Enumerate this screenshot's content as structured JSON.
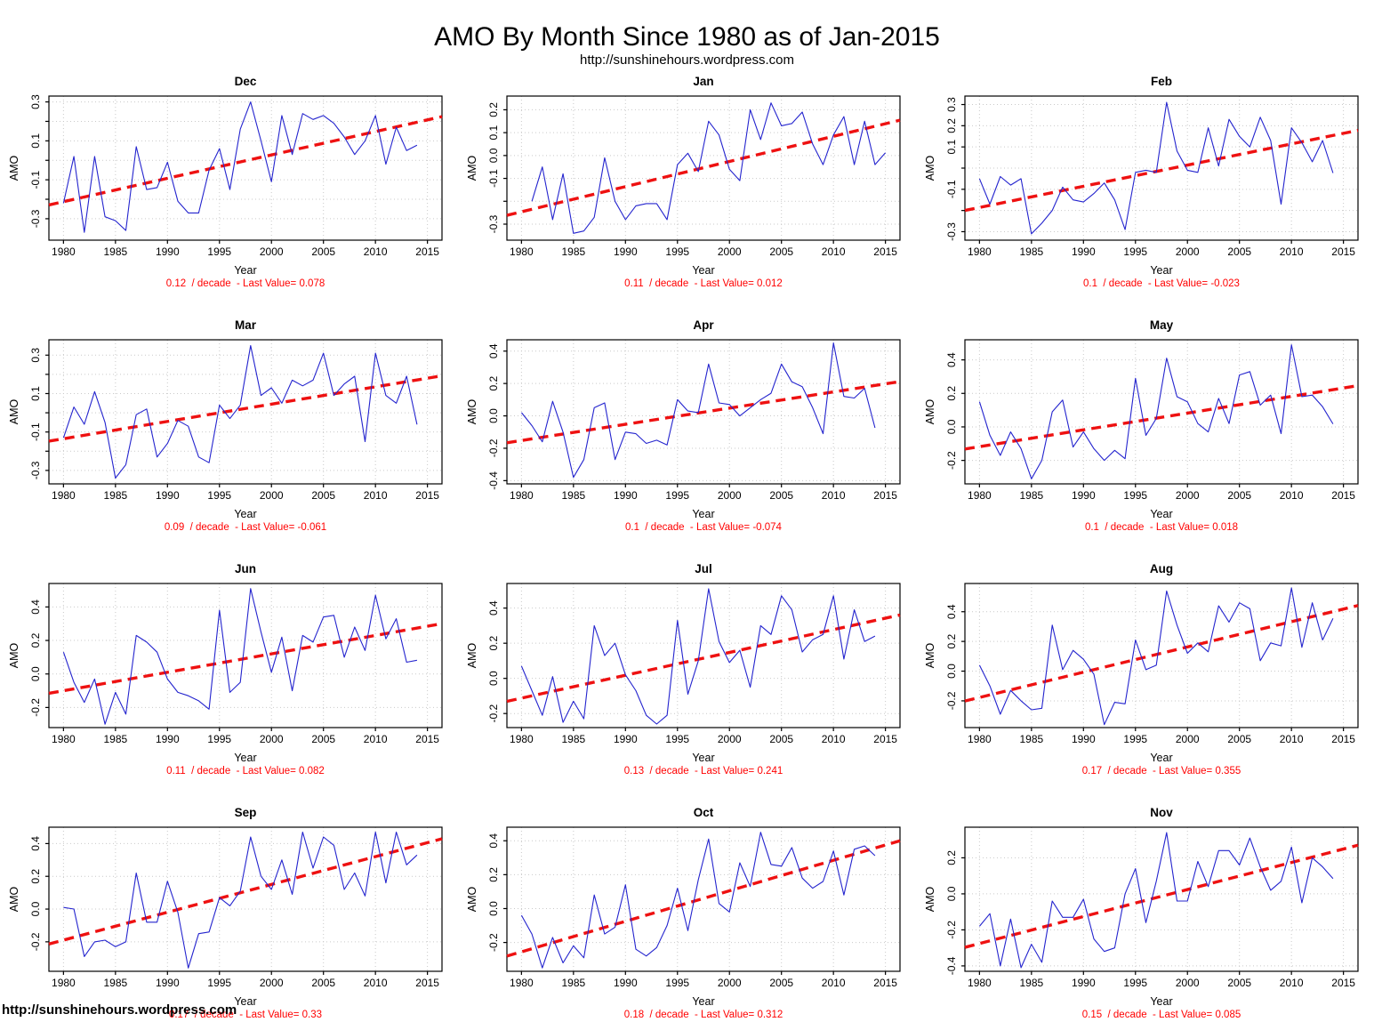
{
  "header": {
    "title": "AMO By Month Since 1980 as of Jan-2015",
    "subtitle": "http://sunshinehours.wordpress.com"
  },
  "footer": {
    "url": "http://sunshinehours.wordpress.com"
  },
  "colors": {
    "series": "#2424CE",
    "trend": "#EE1111",
    "caption": "#FF0000",
    "grid": "#C9C9C9",
    "axis": "#000000"
  },
  "axis": {
    "xlabel": "Year",
    "ylabel": "AMO",
    "xticks": [
      1980,
      1985,
      1990,
      1995,
      2000,
      2005,
      2010,
      2015
    ],
    "xlim": [
      1978.6,
      2016.4
    ]
  },
  "chart_data": [
    {
      "type": "line",
      "title": "Dec",
      "xlabel": "Year",
      "ylabel": "AMO",
      "caption": "0.12  / decade  - Last Value= 0.078",
      "trend_per_decade": 0.12,
      "last_value": 0.078,
      "x_start": 1980,
      "ylim": [
        -0.41,
        0.33
      ],
      "ytick_values": [
        0.3,
        0.2,
        0.1,
        0.0,
        -0.1,
        -0.2,
        -0.3
      ],
      "ytick_labels": [
        "0.3",
        "",
        "0.1",
        "",
        "-0.1",
        "",
        "-0.3"
      ],
      "values": [
        -0.22,
        0.02,
        -0.37,
        0.02,
        -0.29,
        -0.31,
        -0.36,
        0.07,
        -0.15,
        -0.14,
        -0.01,
        -0.21,
        -0.27,
        -0.27,
        -0.05,
        0.06,
        -0.15,
        0.16,
        0.3,
        0.1,
        -0.11,
        0.23,
        0.03,
        0.24,
        0.21,
        0.23,
        0.19,
        0.12,
        0.03,
        0.1,
        0.23,
        -0.02,
        0.17,
        0.05,
        0.078
      ]
    },
    {
      "type": "line",
      "title": "Jan",
      "xlabel": "Year",
      "ylabel": "AMO",
      "caption": "0.11  / decade  - Last Value= 0.012",
      "trend_per_decade": 0.11,
      "last_value": 0.012,
      "x_start": 1981,
      "ylim": [
        -0.37,
        0.26
      ],
      "ytick_values": [
        0.2,
        0.1,
        0.0,
        -0.1,
        -0.2,
        -0.3
      ],
      "ytick_labels": [
        "0.2",
        "0.1",
        "0.0",
        "-0.1",
        "",
        "-0.3"
      ],
      "values": [
        -0.2,
        -0.05,
        -0.28,
        -0.08,
        -0.34,
        -0.33,
        -0.27,
        -0.01,
        -0.2,
        -0.28,
        -0.22,
        -0.21,
        -0.21,
        -0.28,
        -0.04,
        0.01,
        -0.07,
        0.15,
        0.09,
        -0.06,
        -0.11,
        0.2,
        0.07,
        0.23,
        0.13,
        0.14,
        0.19,
        0.05,
        -0.04,
        0.09,
        0.17,
        -0.04,
        0.15,
        -0.04,
        0.012
      ]
    },
    {
      "type": "line",
      "title": "Feb",
      "xlabel": "Year",
      "ylabel": "AMO",
      "caption": "0.1  / decade  - Last Value= -0.023",
      "trend_per_decade": 0.1,
      "last_value": -0.023,
      "x_start": 1980,
      "ylim": [
        -0.34,
        0.34
      ],
      "ytick_values": [
        0.3,
        0.2,
        0.1,
        0.0,
        -0.1,
        -0.2,
        -0.3
      ],
      "ytick_labels": [
        "0.3",
        "0.2",
        "0.1",
        "",
        "-0.1",
        "",
        "-0.3"
      ],
      "values": [
        -0.05,
        -0.17,
        -0.04,
        -0.08,
        -0.05,
        -0.31,
        -0.26,
        -0.2,
        -0.09,
        -0.15,
        -0.16,
        -0.12,
        -0.07,
        -0.15,
        -0.29,
        -0.02,
        -0.01,
        -0.02,
        0.31,
        0.08,
        -0.01,
        -0.02,
        0.19,
        0.01,
        0.23,
        0.15,
        0.1,
        0.24,
        0.13,
        -0.17,
        0.19,
        0.12,
        0.03,
        0.13,
        -0.023
      ]
    },
    {
      "type": "line",
      "title": "Mar",
      "xlabel": "Year",
      "ylabel": "AMO",
      "caption": "0.09  / decade  - Last Value= -0.061",
      "trend_per_decade": 0.09,
      "last_value": -0.061,
      "x_start": 1980,
      "ylim": [
        -0.37,
        0.38
      ],
      "ytick_values": [
        0.3,
        0.2,
        0.1,
        0.0,
        -0.1,
        -0.2,
        -0.3
      ],
      "ytick_labels": [
        "0.3",
        "",
        "0.1",
        "",
        "-0.1",
        "",
        "-0.3"
      ],
      "values": [
        -0.13,
        0.03,
        -0.06,
        0.11,
        -0.05,
        -0.34,
        -0.27,
        -0.01,
        0.02,
        -0.23,
        -0.16,
        -0.04,
        -0.07,
        -0.23,
        -0.26,
        0.04,
        -0.03,
        0.04,
        0.35,
        0.09,
        0.13,
        0.05,
        0.17,
        0.14,
        0.17,
        0.31,
        0.09,
        0.15,
        0.19,
        -0.15,
        0.31,
        0.09,
        0.05,
        0.19,
        -0.061
      ]
    },
    {
      "type": "line",
      "title": "Apr",
      "xlabel": "Year",
      "ylabel": "AMO",
      "caption": "0.1  / decade  - Last Value= -0.074",
      "trend_per_decade": 0.1,
      "last_value": -0.074,
      "x_start": 1980,
      "ylim": [
        -0.42,
        0.47
      ],
      "ytick_values": [
        0.4,
        0.2,
        0.0,
        -0.2,
        -0.4
      ],
      "ytick_labels": [
        "0.4",
        "0.2",
        "0.0",
        "-0.2",
        "-0.4"
      ],
      "values": [
        0.02,
        -0.06,
        -0.16,
        0.09,
        -0.1,
        -0.38,
        -0.27,
        0.05,
        0.08,
        -0.27,
        -0.1,
        -0.11,
        -0.17,
        -0.15,
        -0.18,
        0.1,
        0.03,
        0.02,
        0.32,
        0.08,
        0.07,
        0.0,
        0.05,
        0.1,
        0.14,
        0.32,
        0.21,
        0.18,
        0.05,
        -0.11,
        0.45,
        0.12,
        0.11,
        0.17,
        -0.074
      ]
    },
    {
      "type": "line",
      "title": "May",
      "xlabel": "Year",
      "ylabel": "AMO",
      "caption": "0.1  / decade  - Last Value= 0.018",
      "trend_per_decade": 0.1,
      "last_value": 0.018,
      "x_start": 1980,
      "ylim": [
        -0.34,
        0.52
      ],
      "ytick_values": [
        0.4,
        0.2,
        0.0,
        -0.2
      ],
      "ytick_labels": [
        "0.4",
        "0.2",
        "0.0",
        "-0.2"
      ],
      "values": [
        0.15,
        -0.05,
        -0.17,
        -0.03,
        -0.13,
        -0.31,
        -0.2,
        0.09,
        0.16,
        -0.12,
        -0.03,
        -0.13,
        -0.2,
        -0.14,
        -0.19,
        0.29,
        -0.05,
        0.05,
        0.41,
        0.18,
        0.15,
        0.02,
        -0.03,
        0.17,
        0.02,
        0.31,
        0.33,
        0.13,
        0.19,
        -0.04,
        0.49,
        0.18,
        0.19,
        0.12,
        0.018
      ]
    },
    {
      "type": "line",
      "title": "Jun",
      "xlabel": "Year",
      "ylabel": "AMO",
      "caption": "0.11  / decade  - Last Value= 0.082",
      "trend_per_decade": 0.11,
      "last_value": 0.082,
      "x_start": 1980,
      "ylim": [
        -0.32,
        0.54
      ],
      "ytick_values": [
        0.4,
        0.2,
        0.0,
        -0.2
      ],
      "ytick_labels": [
        "0.4",
        "0.2",
        "0.0",
        "-0.2"
      ],
      "values": [
        0.13,
        -0.05,
        -0.17,
        -0.03,
        -0.3,
        -0.11,
        -0.24,
        0.23,
        0.19,
        0.13,
        -0.03,
        -0.11,
        -0.13,
        -0.16,
        -0.21,
        0.38,
        -0.11,
        -0.05,
        0.51,
        0.25,
        0.01,
        0.22,
        -0.1,
        0.23,
        0.19,
        0.34,
        0.35,
        0.1,
        0.28,
        0.14,
        0.47,
        0.21,
        0.33,
        0.07,
        0.082
      ]
    },
    {
      "type": "line",
      "title": "Jul",
      "xlabel": "Year",
      "ylabel": "AMO",
      "caption": "0.13  / decade  - Last Value= 0.241",
      "trend_per_decade": 0.13,
      "last_value": 0.241,
      "x_start": 1980,
      "ylim": [
        -0.28,
        0.54
      ],
      "ytick_values": [
        0.4,
        0.2,
        0.0,
        -0.2
      ],
      "ytick_labels": [
        "0.4",
        "0.2",
        "0.0",
        "-0.2"
      ],
      "values": [
        0.07,
        -0.07,
        -0.21,
        0.01,
        -0.25,
        -0.13,
        -0.23,
        0.3,
        0.13,
        0.2,
        0.02,
        -0.07,
        -0.21,
        -0.26,
        -0.21,
        0.33,
        -0.09,
        0.1,
        0.51,
        0.21,
        0.09,
        0.16,
        -0.05,
        0.3,
        0.25,
        0.47,
        0.39,
        0.15,
        0.22,
        0.25,
        0.47,
        0.11,
        0.39,
        0.21,
        0.241
      ]
    },
    {
      "type": "line",
      "title": "Aug",
      "xlabel": "Year",
      "ylabel": "AMO",
      "caption": "0.17  / decade  - Last Value= 0.355",
      "trend_per_decade": 0.17,
      "last_value": 0.355,
      "x_start": 1980,
      "ylim": [
        -0.38,
        0.59
      ],
      "ytick_values": [
        0.4,
        0.2,
        0.0,
        -0.2
      ],
      "ytick_labels": [
        "0.4",
        "0.2",
        "0.0",
        "-0.2"
      ],
      "values": [
        0.04,
        -0.1,
        -0.29,
        -0.13,
        -0.2,
        -0.26,
        -0.25,
        0.31,
        0.01,
        0.14,
        0.08,
        -0.02,
        -0.36,
        -0.21,
        -0.22,
        0.21,
        0.01,
        0.04,
        0.54,
        0.31,
        0.12,
        0.19,
        0.13,
        0.44,
        0.33,
        0.46,
        0.42,
        0.07,
        0.19,
        0.17,
        0.56,
        0.16,
        0.46,
        0.21,
        0.355
      ]
    },
    {
      "type": "line",
      "title": "Sep",
      "xlabel": "Year",
      "ylabel": "AMO",
      "caption": "0.17  / decade  - Last Value= 0.33",
      "trend_per_decade": 0.17,
      "last_value": 0.33,
      "x_start": 1980,
      "ylim": [
        -0.38,
        0.5
      ],
      "ytick_values": [
        0.4,
        0.2,
        0.0,
        -0.2
      ],
      "ytick_labels": [
        "0.4",
        "0.2",
        "0.0",
        "-0.2"
      ],
      "values": [
        0.01,
        0.0,
        -0.29,
        -0.2,
        -0.19,
        -0.23,
        -0.2,
        0.22,
        -0.08,
        -0.08,
        0.17,
        -0.02,
        -0.36,
        -0.15,
        -0.14,
        0.07,
        0.02,
        0.11,
        0.44,
        0.2,
        0.12,
        0.3,
        0.09,
        0.47,
        0.25,
        0.44,
        0.39,
        0.12,
        0.22,
        0.08,
        0.47,
        0.16,
        0.47,
        0.27,
        0.33
      ]
    },
    {
      "type": "line",
      "title": "Oct",
      "xlabel": "Year",
      "ylabel": "AMO",
      "caption": "0.18  / decade  - Last Value= 0.312",
      "trend_per_decade": 0.18,
      "last_value": 0.312,
      "x_start": 1980,
      "ylim": [
        -0.37,
        0.48
      ],
      "ytick_values": [
        0.4,
        0.2,
        0.0,
        -0.2
      ],
      "ytick_labels": [
        "0.4",
        "0.2",
        "0.0",
        "-0.2"
      ],
      "values": [
        -0.04,
        -0.15,
        -0.35,
        -0.17,
        -0.32,
        -0.22,
        -0.29,
        0.08,
        -0.15,
        -0.11,
        0.14,
        -0.24,
        -0.28,
        -0.23,
        -0.1,
        0.12,
        -0.13,
        0.17,
        0.41,
        0.03,
        -0.02,
        0.27,
        0.13,
        0.45,
        0.26,
        0.25,
        0.36,
        0.18,
        0.12,
        0.16,
        0.34,
        0.08,
        0.35,
        0.37,
        0.312
      ]
    },
    {
      "type": "line",
      "title": "Nov",
      "xlabel": "Year",
      "ylabel": "AMO",
      "caption": "0.15  / decade  - Last Value= 0.085",
      "trend_per_decade": 0.15,
      "last_value": 0.085,
      "x_start": 1980,
      "ylim": [
        -0.43,
        0.37
      ],
      "ytick_values": [
        0.2,
        0.0,
        -0.2,
        -0.4
      ],
      "ytick_labels": [
        "0.2",
        "0.0",
        "-0.2",
        "-0.4"
      ],
      "values": [
        -0.18,
        -0.11,
        -0.4,
        -0.14,
        -0.41,
        -0.28,
        -0.38,
        -0.04,
        -0.13,
        -0.13,
        -0.03,
        -0.25,
        -0.32,
        -0.3,
        0.0,
        0.14,
        -0.16,
        0.07,
        0.34,
        -0.04,
        -0.04,
        0.18,
        0.04,
        0.24,
        0.24,
        0.16,
        0.31,
        0.15,
        0.02,
        0.07,
        0.26,
        -0.05,
        0.2,
        0.15,
        0.085
      ]
    }
  ]
}
